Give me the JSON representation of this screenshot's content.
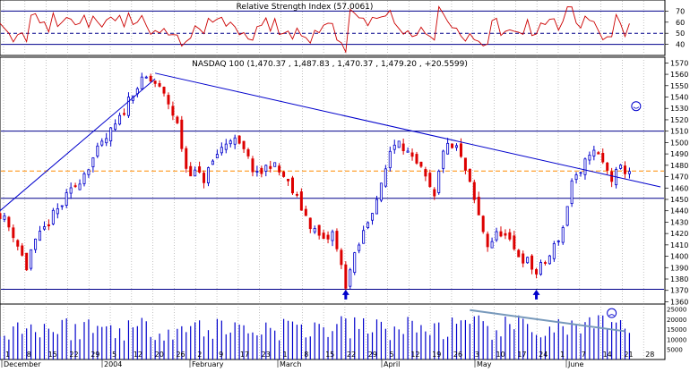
{
  "chart_data": {
    "type": "candlestick",
    "rsi_panel": {
      "title": "Relative Strength Index (57.0061)",
      "ylim": [
        30,
        80
      ],
      "yticks": [
        40,
        50,
        60,
        70
      ],
      "reference_lines": [
        {
          "value": 70,
          "style": "solid",
          "color": "#00008b"
        },
        {
          "value": 50,
          "style": "dashed",
          "color": "#00008b"
        },
        {
          "value": 40,
          "style": "solid",
          "color": "#00008b"
        }
      ],
      "series_color": "#cc0000"
    },
    "price_panel": {
      "title": "NASDAQ 100 (1,470.37 , 1,487.83 , 1,470.37 , 1,479.20 , +20.5599)",
      "ylim": [
        1358,
        1575
      ],
      "yticks": [
        1360,
        1370,
        1380,
        1390,
        1400,
        1410,
        1420,
        1430,
        1440,
        1450,
        1460,
        1470,
        1480,
        1490,
        1500,
        1510,
        1520,
        1530,
        1540,
        1550,
        1560,
        1570
      ],
      "horizontal_lines": [
        {
          "value": 1510,
          "style": "solid",
          "color": "#00008b"
        },
        {
          "value": 1475,
          "style": "dashed",
          "color": "#ff8c00"
        },
        {
          "value": 1451,
          "style": "solid",
          "color": "#00008b"
        },
        {
          "value": 1371,
          "style": "solid",
          "color": "#00008b"
        }
      ],
      "trendlines": [
        {
          "name": "support",
          "from": [
            0,
            1440
          ],
          "to": [
            70,
            1556
          ],
          "color": "#0000cc"
        },
        {
          "name": "resistance",
          "from": [
            70,
            1561
          ],
          "to": [
            298,
            1461
          ],
          "color": "#0000cc"
        }
      ],
      "up_color": "#0000cc",
      "down_color": "#dd0000",
      "annotations": [
        {
          "type": "arrow-up",
          "x": 156,
          "value": 1366
        },
        {
          "type": "arrow-up",
          "x": 242,
          "value": 1366
        },
        {
          "type": "smiley",
          "x": 287,
          "value": 1532
        }
      ]
    },
    "volume_panel": {
      "ylim": [
        0,
        27500
      ],
      "yticks": [
        5000,
        10000,
        15000,
        20000,
        25000
      ],
      "bar_color": "#0000cc",
      "trendline": {
        "from": [
          212,
          24500
        ],
        "to": [
          282,
          14000
        ],
        "color": "#7799bb"
      },
      "annotation": {
        "type": "frowny",
        "x": 276,
        "value": 23000
      }
    },
    "x_axis": {
      "day_ticks": [
        "1",
        "8",
        "15",
        "22",
        "29",
        "5",
        "12",
        "20",
        "26",
        "2",
        "9",
        "17",
        "23",
        "1",
        "8",
        "15",
        "22",
        "29",
        "5",
        "12",
        "19",
        "26",
        "3",
        "10",
        "17",
        "24",
        "1",
        "7",
        "14",
        "21",
        "28"
      ],
      "month_labels": [
        "December",
        "2004",
        "February",
        "March",
        "April",
        "May",
        "June"
      ]
    }
  }
}
